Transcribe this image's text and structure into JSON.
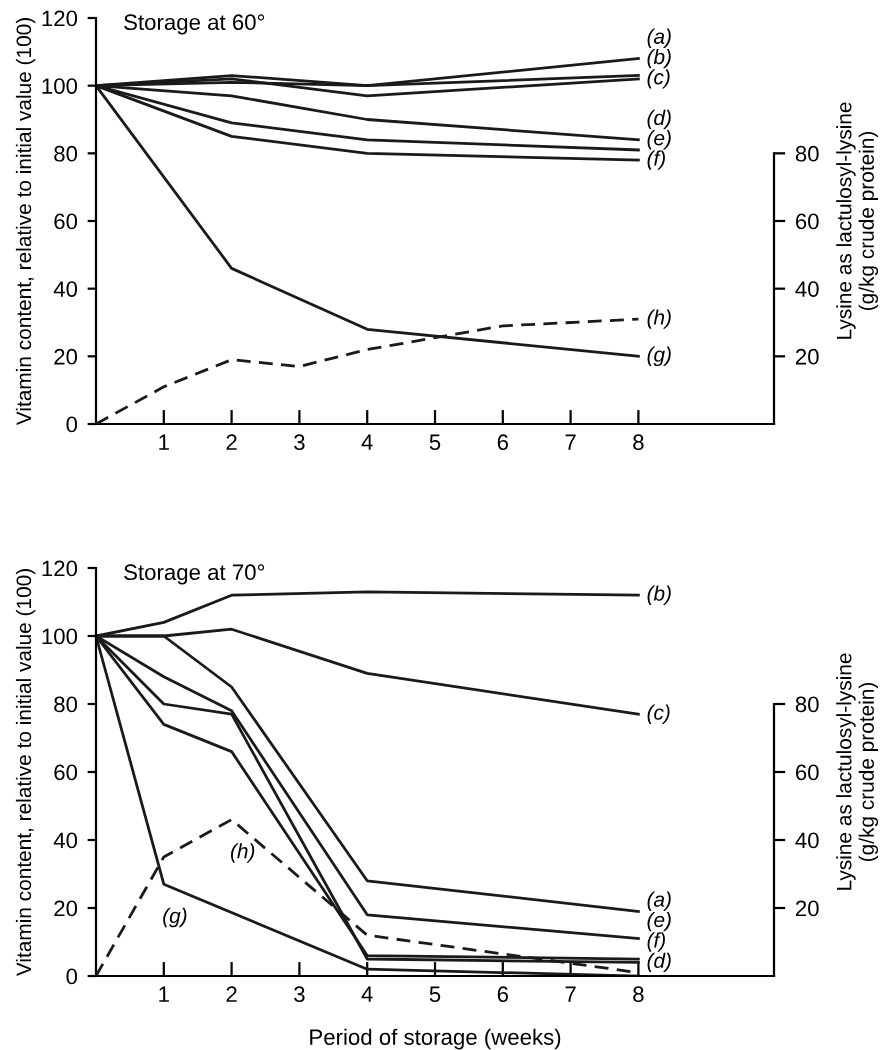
{
  "chart_data": [
    {
      "type": "line",
      "title": "Storage at 60°",
      "ylabel": "Vitamin content, relative to initial value (100)",
      "y2label": "Lysine as lactulosyl-lysine\n(g/kg crude protein)",
      "xlim": [
        0,
        10
      ],
      "xticks": [
        1,
        2,
        3,
        4,
        5,
        6,
        7,
        8
      ],
      "ylim": [
        0,
        120
      ],
      "yticks": [
        0,
        20,
        40,
        60,
        80,
        100,
        120
      ],
      "y2lim": [
        0,
        120
      ],
      "y2ticks": [
        20,
        40,
        60,
        80
      ],
      "grid": false,
      "legend": false,
      "marker": "none",
      "series": [
        {
          "color": "#1a1a1a",
          "line_style": "solid",
          "x": [
            0,
            2,
            4,
            8
          ],
          "values": [
            100,
            103,
            100,
            108
          ]
        },
        {
          "color": "#1a1a1a",
          "line_style": "solid",
          "x": [
            0,
            2,
            4,
            8
          ],
          "values": [
            100,
            101,
            100,
            103
          ]
        },
        {
          "color": "#1a1a1a",
          "line_style": "solid",
          "x": [
            0,
            2,
            4,
            8
          ],
          "values": [
            100,
            102,
            97,
            102
          ]
        },
        {
          "color": "#1a1a1a",
          "line_style": "solid",
          "x": [
            0,
            2,
            4,
            8
          ],
          "values": [
            100,
            97,
            90,
            84
          ]
        },
        {
          "color": "#1a1a1a",
          "line_style": "solid",
          "x": [
            0,
            2,
            4,
            8
          ],
          "values": [
            100,
            89,
            84,
            81
          ]
        },
        {
          "color": "#1a1a1a",
          "line_style": "solid",
          "x": [
            0,
            2,
            4,
            8
          ],
          "values": [
            100,
            85,
            80,
            78
          ]
        },
        {
          "color": "#1a1a1a",
          "line_style": "solid",
          "x": [
            0,
            2,
            4,
            8
          ],
          "values": [
            100,
            46,
            28,
            20
          ]
        },
        {
          "color": "#1a1a1a",
          "line_style": "dashed",
          "axis": "y2",
          "x": [
            0,
            1,
            2,
            3,
            4,
            6,
            8
          ],
          "values": [
            0,
            11,
            19,
            17,
            22,
            29,
            31
          ]
        }
      ],
      "annotations": [
        {
          "text": "(a)",
          "x": 8,
          "y": 108
        },
        {
          "text": "(b)",
          "x": 8,
          "y": 103
        },
        {
          "text": "(c)",
          "x": 8,
          "y": 102
        },
        {
          "text": "(d)",
          "x": 8,
          "y": 84
        },
        {
          "text": "(e)",
          "x": 8,
          "y": 81
        },
        {
          "text": "(f)",
          "x": 8,
          "y": 78
        },
        {
          "text": "(h)",
          "x": 8,
          "y": 31
        },
        {
          "text": "(g)",
          "x": 8,
          "y": 20
        }
      ]
    },
    {
      "type": "line",
      "title": "Storage at 70°",
      "xlabel": "Period of storage (weeks)",
      "ylabel": "Vitamin content, relative to initial value (100)",
      "y2label": "Lysine as lactulosyl-lysine\n(g/kg crude protein)",
      "xlim": [
        0,
        10
      ],
      "xticks": [
        1,
        2,
        3,
        4,
        5,
        6,
        7,
        8
      ],
      "ylim": [
        0,
        120
      ],
      "yticks": [
        0,
        20,
        40,
        60,
        80,
        100,
        120
      ],
      "y2lim": [
        0,
        120
      ],
      "y2ticks": [
        20,
        40,
        60,
        80
      ],
      "grid": false,
      "legend": false,
      "marker": "none",
      "series": [
        {
          "color": "#1a1a1a",
          "line_style": "solid",
          "x": [
            0,
            1,
            2,
            4,
            8
          ],
          "values": [
            100,
            100,
            85,
            28,
            19
          ]
        },
        {
          "color": "#1a1a1a",
          "line_style": "solid",
          "x": [
            0,
            1,
            2,
            4,
            8
          ],
          "values": [
            100,
            104,
            112,
            113,
            112
          ]
        },
        {
          "color": "#1a1a1a",
          "line_style": "solid",
          "x": [
            0,
            1,
            2,
            4,
            8
          ],
          "values": [
            100,
            100,
            102,
            89,
            77
          ]
        },
        {
          "color": "#1a1a1a",
          "line_style": "solid",
          "x": [
            0,
            1,
            2,
            4,
            8
          ],
          "values": [
            100,
            80,
            77,
            5,
            4
          ]
        },
        {
          "color": "#1a1a1a",
          "line_style": "solid",
          "x": [
            0,
            1,
            2,
            4,
            8
          ],
          "values": [
            100,
            88,
            78,
            18,
            11
          ]
        },
        {
          "color": "#1a1a1a",
          "line_style": "solid",
          "x": [
            0,
            1,
            2,
            4,
            8
          ],
          "values": [
            100,
            74,
            66,
            6,
            5
          ]
        },
        {
          "color": "#1a1a1a",
          "line_style": "solid",
          "x": [
            0,
            1,
            4,
            8
          ],
          "values": [
            100,
            27,
            2,
            0
          ]
        },
        {
          "color": "#1a1a1a",
          "line_style": "dashed",
          "axis": "y2",
          "x": [
            0,
            1,
            2,
            4,
            8
          ],
          "values": [
            0,
            35,
            46,
            12,
            1
          ]
        }
      ],
      "annotations": [
        {
          "text": "(b)",
          "x": 8,
          "y": 112
        },
        {
          "text": "(c)",
          "x": 8,
          "y": 77
        },
        {
          "text": "(a)",
          "x": 8,
          "y": 19
        },
        {
          "text": "(e)",
          "x": 8,
          "y": 11
        },
        {
          "text": "(f)",
          "x": 8,
          "y": 5
        },
        {
          "text": "(d)",
          "x": 8,
          "y": 4
        },
        {
          "text": "(h)",
          "x": 2,
          "y": 46
        },
        {
          "text": "(g)",
          "x": 1,
          "y": 27
        }
      ]
    }
  ]
}
